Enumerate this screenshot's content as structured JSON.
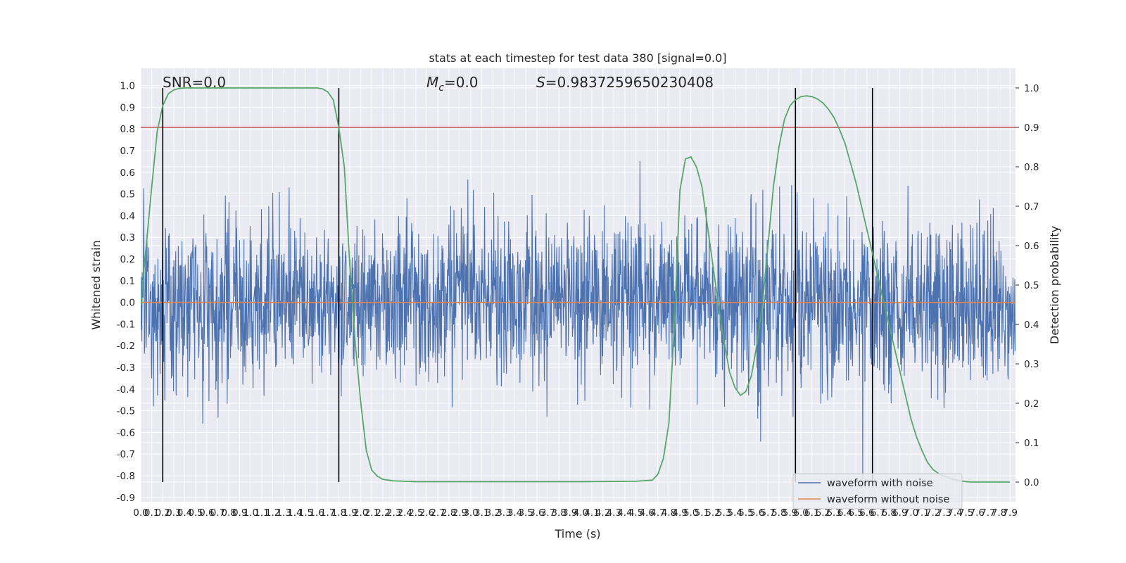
{
  "chart_data": {
    "type": "line",
    "title": "stats at each timestep for test data 380 [signal=0.0]",
    "xlabel": "Time (s)",
    "ylabel": "Whitened strain",
    "y2label": "Detection probability",
    "xlim": [
      0.0,
      7.95
    ],
    "ylim": [
      -0.92,
      1.08
    ],
    "y2lim": [
      -0.05,
      1.05
    ],
    "x_ticks": [
      0.0,
      0.1,
      0.2,
      0.3,
      0.4,
      0.5,
      0.6,
      0.7,
      0.8,
      0.9,
      1.0,
      1.1,
      1.2,
      1.3,
      1.4,
      1.5,
      1.6,
      1.7,
      1.8,
      1.9,
      2.0,
      2.1,
      2.2,
      2.3,
      2.4,
      2.5,
      2.6,
      2.7,
      2.8,
      2.9,
      3.0,
      3.1,
      3.2,
      3.3,
      3.4,
      3.5,
      3.6,
      3.7,
      3.8,
      3.9,
      4.0,
      4.1,
      4.2,
      4.3,
      4.4,
      4.5,
      4.6,
      4.7,
      4.8,
      4.9,
      5.0,
      5.1,
      5.2,
      5.3,
      5.4,
      5.5,
      5.6,
      5.7,
      5.8,
      5.9,
      6.0,
      6.1,
      6.2,
      6.3,
      6.4,
      6.5,
      6.6,
      6.7,
      6.8,
      6.9,
      7.0,
      7.1,
      7.2,
      7.3,
      7.4,
      7.5,
      7.6,
      7.7,
      7.8,
      7.9
    ],
    "y_ticks": [
      1.0,
      0.9,
      0.8,
      0.7,
      0.6,
      0.5,
      0.4,
      0.3,
      0.2,
      0.1,
      0.0,
      -0.1,
      -0.2,
      -0.3,
      -0.4,
      -0.5,
      -0.6,
      -0.7,
      -0.8,
      -0.9
    ],
    "y2_ticks": [
      1.0,
      0.9,
      0.8,
      0.7,
      0.6,
      0.5,
      0.4,
      0.3,
      0.2,
      0.1,
      0.0
    ],
    "annotations": {
      "snr": "SNR=0.0",
      "mc_symbol": "M",
      "mc_subscript": "c",
      "mc_value": "=0.0",
      "s_symbol": "S",
      "s_value": "=0.9837259650230408"
    },
    "series": [
      {
        "name": "waveform with noise",
        "color": "#4c72b0",
        "kind": "noise",
        "x_range": [
          0.0,
          7.95
        ],
        "y_range": [
          -0.84,
          1.0
        ]
      },
      {
        "name": "waveform without noise",
        "color": "#dd8452",
        "kind": "constant",
        "y": 0.0
      },
      {
        "color": "#55a868",
        "axis": "right",
        "kind": "line",
        "x": [
          0.0,
          0.05,
          0.1,
          0.15,
          0.2,
          0.25,
          0.3,
          0.35,
          0.4,
          0.5,
          0.6,
          0.8,
          1.0,
          1.2,
          1.4,
          1.5,
          1.6,
          1.65,
          1.7,
          1.75,
          1.8,
          1.85,
          1.9,
          1.95,
          2.0,
          2.05,
          2.1,
          2.15,
          2.2,
          2.3,
          2.5,
          3.0,
          3.5,
          4.0,
          4.5,
          4.65,
          4.7,
          4.75,
          4.8,
          4.85,
          4.9,
          4.95,
          5.0,
          5.05,
          5.1,
          5.15,
          5.2,
          5.25,
          5.3,
          5.35,
          5.4,
          5.45,
          5.5,
          5.55,
          5.6,
          5.65,
          5.7,
          5.75,
          5.8,
          5.85,
          5.9,
          5.95,
          6.0,
          6.05,
          6.1,
          6.15,
          6.2,
          6.25,
          6.3,
          6.35,
          6.4,
          6.45,
          6.5,
          6.55,
          6.6,
          6.65,
          6.7,
          6.75,
          6.8,
          6.85,
          6.9,
          6.95,
          7.0,
          7.05,
          7.1,
          7.15,
          7.2,
          7.25,
          7.3,
          7.35,
          7.4,
          7.45,
          7.5,
          7.55,
          7.6,
          7.65,
          7.7,
          7.75,
          7.8,
          7.85,
          7.9
        ],
        "y": [
          0.45,
          0.6,
          0.75,
          0.89,
          0.955,
          0.985,
          0.995,
          0.999,
          1.0,
          1.0,
          1.0,
          1.0,
          1.0,
          1.0,
          1.0,
          1.0,
          1.0,
          0.998,
          0.99,
          0.97,
          0.9,
          0.8,
          0.55,
          0.35,
          0.2,
          0.08,
          0.03,
          0.015,
          0.007,
          0.003,
          0.001,
          0.001,
          0.001,
          0.001,
          0.002,
          0.005,
          0.02,
          0.06,
          0.15,
          0.4,
          0.74,
          0.82,
          0.825,
          0.8,
          0.75,
          0.65,
          0.55,
          0.45,
          0.36,
          0.28,
          0.24,
          0.22,
          0.23,
          0.27,
          0.35,
          0.45,
          0.6,
          0.75,
          0.85,
          0.92,
          0.955,
          0.97,
          0.978,
          0.98,
          0.978,
          0.972,
          0.962,
          0.946,
          0.925,
          0.895,
          0.86,
          0.81,
          0.76,
          0.7,
          0.64,
          0.58,
          0.52,
          0.46,
          0.4,
          0.34,
          0.28,
          0.22,
          0.16,
          0.115,
          0.08,
          0.05,
          0.032,
          0.022,
          0.015,
          0.01,
          0.006,
          0.003,
          0.001,
          0.0,
          0.0,
          0.0,
          0.0,
          0.0,
          0.0,
          0.0,
          0.0
        ]
      }
    ],
    "hlines": [
      {
        "y2": 0.9,
        "color": "#c44e52"
      }
    ],
    "vlines": [
      {
        "x": 0.2,
        "color": "#000000"
      },
      {
        "x": 1.8,
        "color": "#000000"
      },
      {
        "x": 5.95,
        "color": "#000000"
      },
      {
        "x": 6.65,
        "color": "#000000"
      }
    ],
    "legend": {
      "placement": "lower-right"
    },
    "grid": true,
    "background": "#eaeaf2"
  }
}
